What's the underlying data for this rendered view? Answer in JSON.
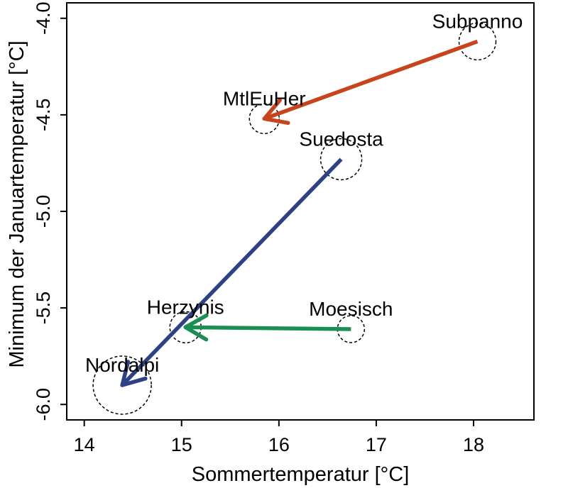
{
  "chart_data": {
    "type": "scatter",
    "title": "",
    "xlabel": "Sommertemperatur [°C]",
    "ylabel": "Minimum der Januartemperatur [°C]",
    "xlim": [
      13.82,
      18.62
    ],
    "ylim": [
      -6.08,
      -3.92
    ],
    "grid": false,
    "legend": "none",
    "x_ticks": {
      "values": [
        14,
        15,
        16,
        17,
        18
      ],
      "labels": [
        "14",
        "15",
        "16",
        "17",
        "18"
      ]
    },
    "y_ticks": {
      "values": [
        -4.0,
        -4.5,
        -5.0,
        -5.5,
        -6.0
      ],
      "labels": [
        "-4.0",
        "-4.5",
        "-5.0",
        "-5.5",
        "-6.0"
      ]
    },
    "points": [
      {
        "name": "Subpanno",
        "x": 18.04,
        "y": -4.12,
        "radius_px": 26
      },
      {
        "name": "MtlEuHer",
        "x": 15.85,
        "y": -4.52,
        "radius_px": 21
      },
      {
        "name": "Suedosta",
        "x": 16.64,
        "y": -4.73,
        "radius_px": 29
      },
      {
        "name": "Herzynis",
        "x": 15.04,
        "y": -5.6,
        "radius_px": 22
      },
      {
        "name": "Moesisch",
        "x": 16.74,
        "y": -5.61,
        "radius_px": 19
      },
      {
        "name": "Nordalpi",
        "x": 14.39,
        "y": -5.9,
        "radius_px": 41
      }
    ],
    "arrows": [
      {
        "from": "Subpanno",
        "to": "MtlEuHer",
        "color": "#C7441C"
      },
      {
        "from": "Suedosta",
        "to": "Nordalpi",
        "color": "#2D4184"
      },
      {
        "from": "Moesisch",
        "to": "Herzynis",
        "color": "#1B8F53"
      }
    ],
    "point_style": {
      "outline_color": "#000000",
      "fill": "none",
      "dashed": true
    },
    "axis_color": "#000000",
    "label_color": "#000000"
  }
}
